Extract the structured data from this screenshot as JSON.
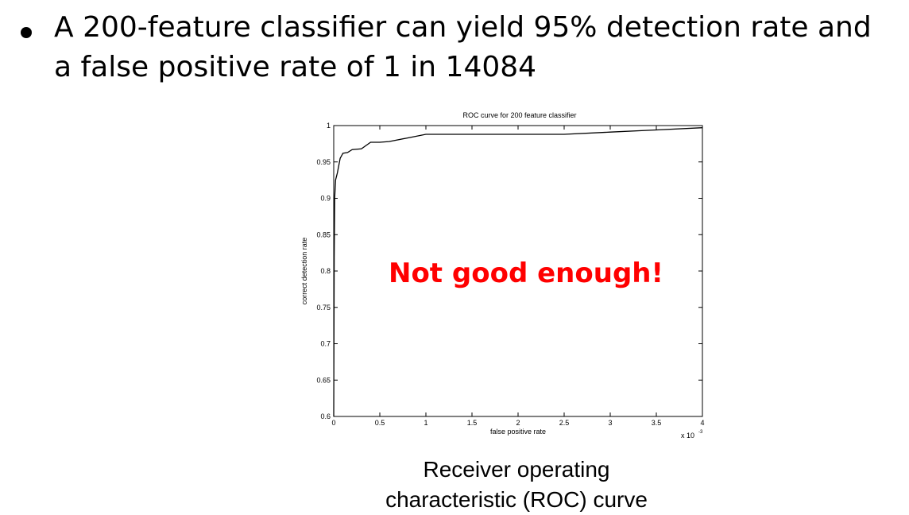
{
  "bullet": {
    "text": "A 200-feature classifier can yield 95% detection rate and a false positive rate of 1 in 14084"
  },
  "caption": {
    "line1": "Receiver operating",
    "line2": "characteristic (ROC) curve"
  },
  "chart_data": {
    "type": "line",
    "title": "ROC curve for 200 feature classifier",
    "xlabel": "false positive rate",
    "ylabel": "correct detection rate",
    "x_scale_label": "x 10",
    "x_scale_exponent": "-3",
    "xlim": [
      0,
      0.004
    ],
    "ylim": [
      0.6,
      1
    ],
    "x_ticks": [
      0,
      0.0005,
      0.001,
      0.0015,
      0.002,
      0.0025,
      0.003,
      0.0035,
      0.004
    ],
    "x_tick_labels": [
      "0",
      "0.5",
      "1",
      "1.5",
      "2",
      "2.5",
      "3",
      "3.5",
      "4"
    ],
    "y_ticks": [
      0.6,
      0.65,
      0.7,
      0.75,
      0.8,
      0.85,
      0.9,
      0.95,
      1
    ],
    "y_tick_labels": [
      "0.6",
      "0.65",
      "0.7",
      "0.75",
      "0.8",
      "0.85",
      "0.9",
      "0.95",
      "1"
    ],
    "grid": false,
    "annotation": {
      "text": "Not good enough!",
      "color": "#ff0000"
    },
    "series": [
      {
        "line_color": "#000000",
        "x": [
          0,
          5e-06,
          1e-05,
          2e-05,
          4e-05,
          7e-05,
          0.0001,
          0.00015,
          0.0002,
          0.0003,
          0.0004,
          0.0005,
          0.0006,
          0.0008,
          0.001,
          0.0015,
          0.002,
          0.0025,
          0.003,
          0.0035,
          0.004
        ],
        "y": [
          0.6,
          0.82,
          0.9,
          0.925,
          0.935,
          0.955,
          0.962,
          0.963,
          0.967,
          0.968,
          0.977,
          0.977,
          0.978,
          0.983,
          0.988,
          0.988,
          0.988,
          0.988,
          0.991,
          0.994,
          0.997
        ]
      }
    ]
  }
}
